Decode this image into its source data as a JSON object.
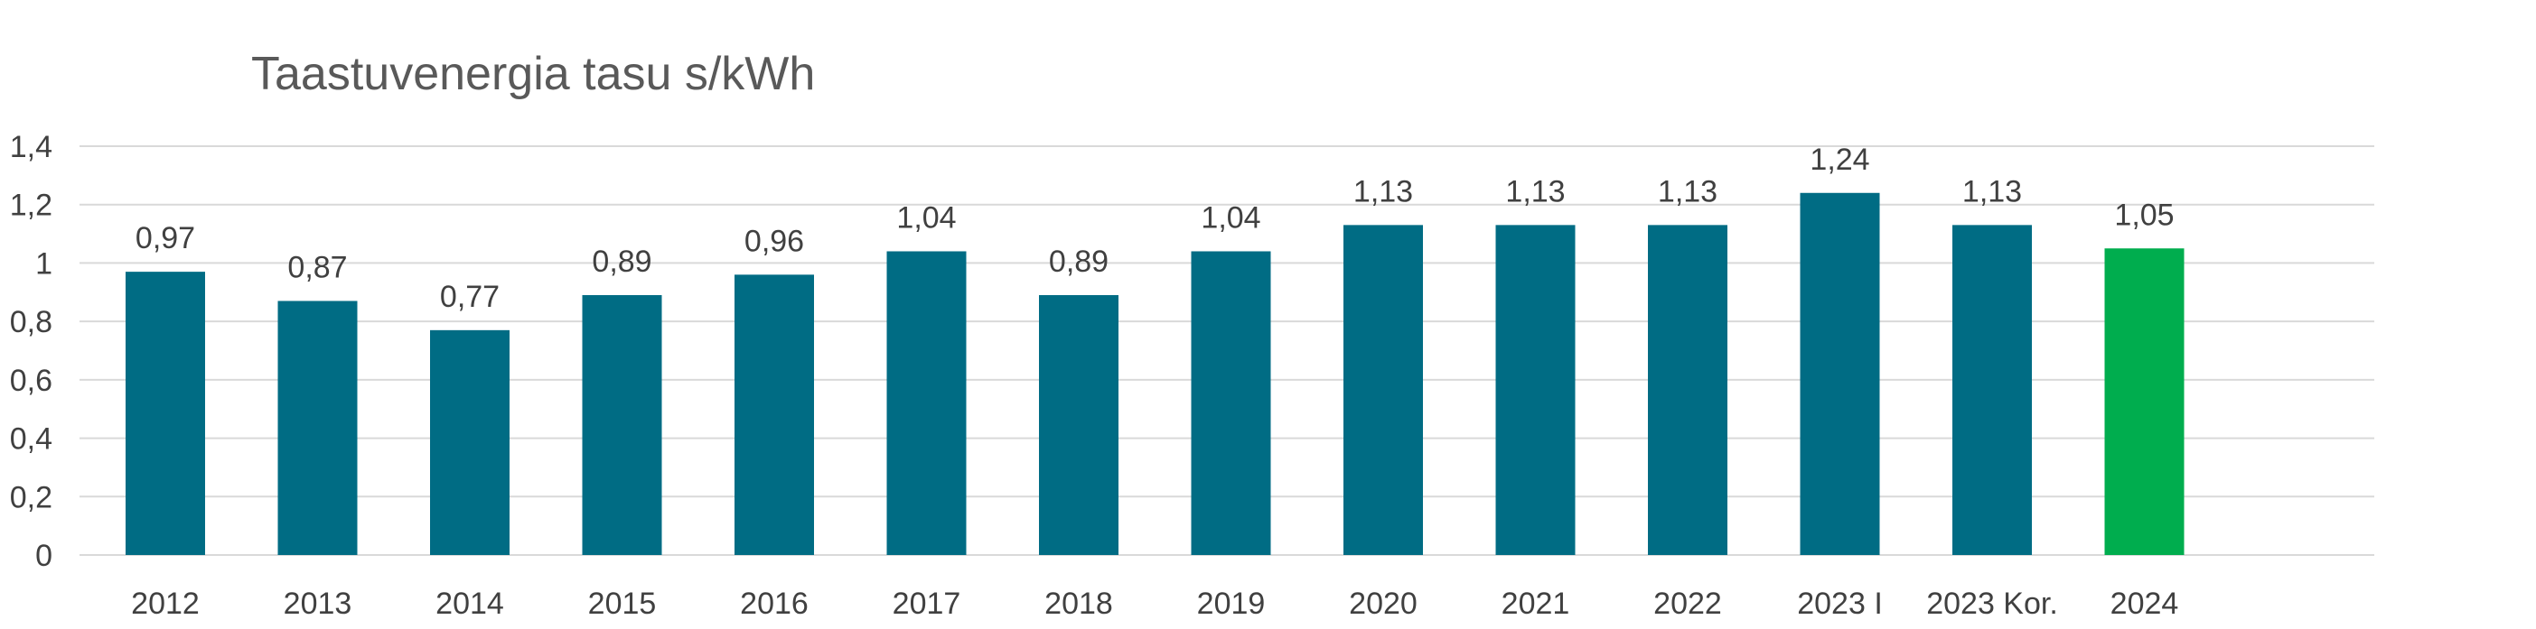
{
  "chart_data": {
    "type": "bar",
    "title": "Taastuvenergia tasu s/kWh",
    "xlabel": "",
    "ylabel": "",
    "categories": [
      "2012",
      "2013",
      "2014",
      "2015",
      "2016",
      "2017",
      "2018",
      "2019",
      "2020",
      "2021",
      "2022",
      "2023 I",
      "2023 Kor.",
      "2024"
    ],
    "values": [
      0.97,
      0.87,
      0.77,
      0.89,
      0.96,
      1.04,
      0.89,
      1.04,
      1.13,
      1.13,
      1.13,
      1.24,
      1.13,
      1.05
    ],
    "data_labels": [
      "0,97",
      "0,87",
      "0,77",
      "0,89",
      "0,96",
      "1,04",
      "0,89",
      "1,04",
      "1,13",
      "1,13",
      "1,13",
      "1,24",
      "1,13",
      "1,05"
    ],
    "ylim": [
      0,
      1.4
    ],
    "yticks": [
      0,
      0.2,
      0.4,
      0.6,
      0.8,
      1,
      1.2,
      1.4
    ],
    "ytick_labels": [
      "0",
      "0,2",
      "0,4",
      "0,6",
      "0,8",
      "1",
      "1,2",
      "1,4"
    ],
    "grid": true,
    "legend": "none",
    "colors": {
      "bar": "#006C84",
      "highlight_bar": "#00AD4E",
      "gridline": "#D9D9D9",
      "text": "#404040",
      "title": "#595959"
    },
    "highlight_category": "2024"
  }
}
